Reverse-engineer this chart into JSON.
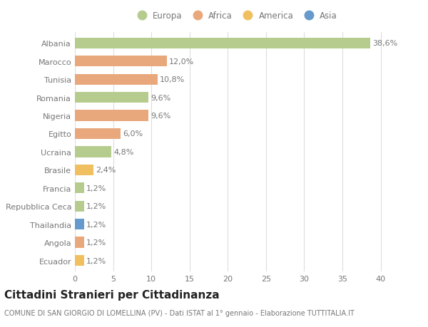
{
  "categories": [
    "Albania",
    "Marocco",
    "Tunisia",
    "Romania",
    "Nigeria",
    "Egitto",
    "Ucraina",
    "Brasile",
    "Francia",
    "Repubblica Ceca",
    "Thailandia",
    "Angola",
    "Ecuador"
  ],
  "values": [
    38.6,
    12.0,
    10.8,
    9.6,
    9.6,
    6.0,
    4.8,
    2.4,
    1.2,
    1.2,
    1.2,
    1.2,
    1.2
  ],
  "labels": [
    "38,6%",
    "12,0%",
    "10,8%",
    "9,6%",
    "9,6%",
    "6,0%",
    "4,8%",
    "2,4%",
    "1,2%",
    "1,2%",
    "1,2%",
    "1,2%",
    "1,2%"
  ],
  "continents": [
    "Europa",
    "Africa",
    "Africa",
    "Europa",
    "Africa",
    "Africa",
    "Europa",
    "America",
    "Europa",
    "Europa",
    "Asia",
    "Africa",
    "America"
  ],
  "colors": {
    "Europa": "#b5cc8e",
    "Africa": "#e8a87c",
    "America": "#f0c060",
    "Asia": "#6699cc"
  },
  "title": "Cittadini Stranieri per Cittadinanza",
  "subtitle": "COMUNE DI SAN GIORGIO DI LOMELLINA (PV) - Dati ISTAT al 1° gennaio - Elaborazione TUTTITALIA.IT",
  "xlim": [
    0,
    42
  ],
  "xticks": [
    0,
    5,
    10,
    15,
    20,
    25,
    30,
    35,
    40
  ],
  "background_color": "#ffffff",
  "grid_color": "#dddddd",
  "bar_height": 0.6,
  "label_fontsize": 8.0,
  "title_fontsize": 11,
  "subtitle_fontsize": 7.0,
  "tick_fontsize": 8.0,
  "legend_fontsize": 8.5,
  "text_color": "#777777",
  "title_color": "#222222"
}
